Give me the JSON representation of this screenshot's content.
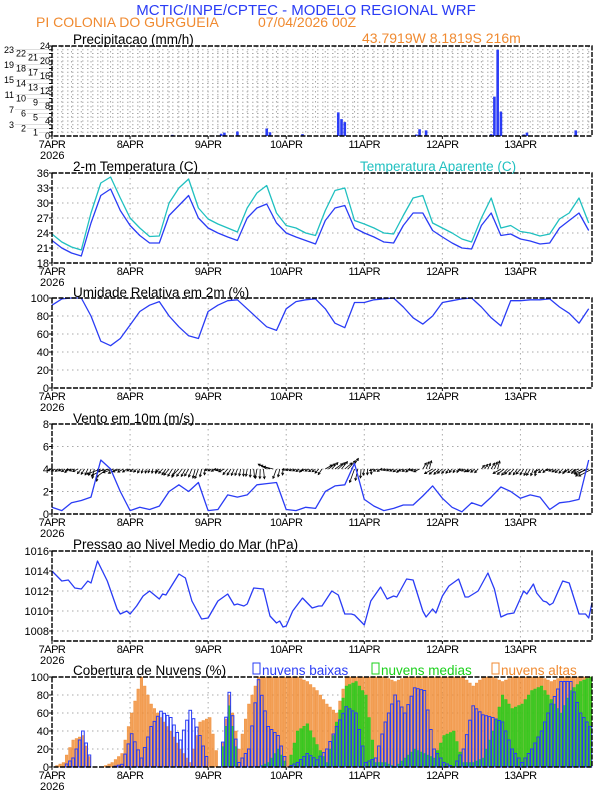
{
  "header": {
    "title": "MCTIC/INPE/CPTEC - MODELO REGIONAL WRF",
    "location": "PI COLONIA DO GURGUEIA",
    "run": "07/04/2026 00Z",
    "coords": "43.7919W 8.1819S 216m"
  },
  "colors": {
    "blue": "#2a3cf5",
    "cyan": "#20c0c0",
    "orange": "#f08a30",
    "green": "#18d018",
    "grid": "#aaaaaa"
  },
  "time_axis": {
    "labels": [
      "7APR",
      "8APR",
      "9APR",
      "10APR",
      "11APR",
      "12APR",
      "13APR"
    ],
    "year": "2026",
    "hours_total": 166,
    "step_hours": 3
  },
  "chart_data": [
    {
      "id": "precip",
      "type": "bar",
      "title": "Precipitacao (mm/h)",
      "ylim": [
        0,
        24
      ],
      "yticks_step": 1,
      "points_hour_value": [
        [
          37,
          0.3
        ],
        [
          52,
          0.6
        ],
        [
          53,
          0.9
        ],
        [
          57,
          1.2
        ],
        [
          66,
          2.0
        ],
        [
          67,
          1.0
        ],
        [
          77,
          0.5
        ],
        [
          88,
          6.3
        ],
        [
          89,
          4.5
        ],
        [
          90,
          3.7
        ],
        [
          112,
          0.4
        ],
        [
          113,
          1.8
        ],
        [
          115,
          1.5
        ],
        [
          135,
          0.5
        ],
        [
          136,
          10.5
        ],
        [
          137,
          23
        ],
        [
          138,
          6.5
        ],
        [
          145,
          0.4
        ],
        [
          146,
          0.9
        ],
        [
          161,
          1.5
        ]
      ]
    },
    {
      "id": "temp",
      "type": "line",
      "title": "2-m Temperatura (C)",
      "title2": "Temperatura Aparente (C)",
      "ylim": [
        18,
        36
      ],
      "yticks": [
        18,
        21,
        24,
        27,
        30,
        33,
        36
      ],
      "series": [
        {
          "name": "2-m Temperatura (C)",
          "color": "#2a3cf5",
          "values": [
            22.5,
            21.0,
            20.0,
            19.4,
            26.0,
            31.5,
            32.8,
            28.5,
            25.5,
            23.5,
            22.0,
            22.0,
            27.5,
            29.5,
            31.5,
            27.0,
            25.0,
            24.0,
            23.2,
            22.5,
            27.0,
            29.0,
            29.8,
            26.0,
            24.0,
            23.2,
            22.5,
            21.8,
            26.5,
            29.0,
            29.5,
            25.0,
            24.0,
            23.2,
            22.2,
            22.0,
            25.5,
            28.0,
            28.0,
            24.5,
            23.2,
            22.0,
            21.0,
            20.8,
            25.5,
            28.0,
            23.5,
            23.8,
            22.8,
            22.4,
            21.8,
            22.0,
            25.0,
            26.5,
            28.0,
            24.5
          ]
        },
        {
          "name": "Temperatura Aparente (C)",
          "color": "#20c0c0",
          "values": [
            23.8,
            22.2,
            21.2,
            20.6,
            28.0,
            34.0,
            35.2,
            31.0,
            27.0,
            25.0,
            23.3,
            23.4,
            30.0,
            33.0,
            34.8,
            29.0,
            26.8,
            25.8,
            25.0,
            24.2,
            29.0,
            32.0,
            33.5,
            28.0,
            25.5,
            25.0,
            24.0,
            23.5,
            28.5,
            32.5,
            33.0,
            26.5,
            25.8,
            25.0,
            24.0,
            23.8,
            27.5,
            31.0,
            31.5,
            26.0,
            25.0,
            24.0,
            22.8,
            22.2,
            27.0,
            31.0,
            25.0,
            25.5,
            24.3,
            24.0,
            23.4,
            23.8,
            26.8,
            28.0,
            31.0,
            26.0
          ]
        }
      ]
    },
    {
      "id": "rh",
      "type": "line",
      "title": "Umidade Relativa em 2m (%)",
      "ylim": [
        0,
        100
      ],
      "yticks": [
        0,
        20,
        40,
        60,
        80,
        100
      ],
      "series": [
        {
          "name": "Umidade Relativa",
          "color": "#2a3cf5",
          "values": [
            92,
            99,
            100,
            100,
            80,
            52,
            47,
            55,
            70,
            85,
            92,
            96,
            80,
            68,
            58,
            55,
            85,
            92,
            97,
            98,
            88,
            78,
            68,
            64,
            88,
            96,
            98,
            99,
            88,
            72,
            67,
            95,
            95,
            98,
            99,
            100,
            90,
            78,
            71,
            80,
            95,
            97,
            99,
            100,
            90,
            78,
            69,
            97,
            97,
            98,
            98,
            99,
            90,
            83,
            72,
            88
          ]
        }
      ]
    },
    {
      "id": "wind",
      "type": "line",
      "title": "Vento em 10m (m/s)",
      "ylim": [
        0,
        8
      ],
      "yticks": [
        0,
        2,
        4,
        6,
        8
      ],
      "series": [
        {
          "name": "Velocidade",
          "color": "#2a3cf5",
          "values": [
            0.6,
            0.3,
            1.0,
            1.2,
            1.5,
            4.8,
            4.0,
            2.0,
            0.3,
            0.6,
            0.4,
            0.7,
            2.0,
            2.6,
            2.0,
            2.8,
            0.3,
            0.4,
            1.7,
            1.5,
            1.7,
            2.6,
            2.7,
            2.8,
            0.4,
            0.3,
            0.6,
            0.5,
            2.0,
            2.5,
            2.6,
            4.5,
            1.3,
            0.7,
            0.3,
            0.5,
            0.8,
            0.8,
            1.6,
            2.5,
            1.4,
            0.6,
            0.2,
            1.0,
            0.7,
            1.5,
            2.4,
            2.0,
            1.4,
            1.7,
            1.5,
            0.4,
            1.0,
            1.1,
            1.3,
            4.8
          ]
        }
      ],
      "arrow_direction_deg": [
        200,
        210,
        190,
        230,
        250,
        200,
        190,
        200,
        210,
        240,
        250,
        220,
        230,
        225,
        240,
        250,
        200,
        190,
        230,
        250,
        260,
        260,
        150,
        250,
        190,
        210,
        200,
        220,
        30,
        35,
        40,
        250,
        260,
        200,
        190,
        210,
        200,
        190,
        60,
        210,
        220,
        230,
        200,
        210,
        50,
        60,
        210,
        220,
        230,
        240,
        210,
        200,
        220,
        210,
        200,
        200
      ]
    },
    {
      "id": "pressure",
      "type": "line",
      "title": "Pressao ao Nivel Medio do Mar (hPa)",
      "ylim": [
        1007,
        1016
      ],
      "yticks": [
        1008,
        1010,
        1012,
        1014,
        1016
      ],
      "series": [
        {
          "name": "Pressao",
          "color": "#2a3cf5",
          "points_hour_value": [
            [
              0,
              1014
            ],
            [
              3,
              1013
            ],
            [
              5,
              1013.1
            ],
            [
              7,
              1012.3
            ],
            [
              9,
              1012.2
            ],
            [
              11,
              1013
            ],
            [
              12,
              1012.8
            ],
            [
              14,
              1015
            ],
            [
              17,
              1013
            ],
            [
              20,
              1010.2
            ],
            [
              21,
              1009.7
            ],
            [
              23,
              1010
            ],
            [
              24,
              1009.7
            ],
            [
              26,
              1010.5
            ],
            [
              28,
              1011.5
            ],
            [
              30,
              1012
            ],
            [
              33,
              1011.2
            ],
            [
              34,
              1011.7
            ],
            [
              35,
              1011.6
            ],
            [
              39,
              1013.7
            ],
            [
              41,
              1013.3
            ],
            [
              43,
              1011
            ],
            [
              46,
              1009.2
            ],
            [
              48,
              1009.3
            ],
            [
              51,
              1011
            ],
            [
              54,
              1011.7
            ],
            [
              56,
              1010.6
            ],
            [
              57,
              1010.7
            ],
            [
              59,
              1010.5
            ],
            [
              60,
              1010.7
            ],
            [
              62,
              1012.3
            ],
            [
              65,
              1012.2
            ],
            [
              67,
              1009.5
            ],
            [
              69,
              1008.8
            ],
            [
              70,
              1009
            ],
            [
              71,
              1008.4
            ],
            [
              72,
              1008.5
            ],
            [
              74,
              1010
            ],
            [
              77,
              1011.3
            ],
            [
              80,
              1010.3
            ],
            [
              82,
              1010.5
            ],
            [
              83,
              1010.5
            ],
            [
              86,
              1012
            ],
            [
              88,
              1011.6
            ],
            [
              90,
              1009.7
            ],
            [
              92,
              1009.7
            ],
            [
              93,
              1009.6
            ],
            [
              96,
              1008.6
            ],
            [
              98,
              1011
            ],
            [
              101,
              1012.4
            ],
            [
              103,
              1011.2
            ],
            [
              105,
              1011.5
            ],
            [
              106,
              1011.4
            ],
            [
              109,
              1013.2
            ],
            [
              111,
              1013.1
            ],
            [
              114,
              1010
            ],
            [
              115,
              1009.4
            ],
            [
              117,
              1010.2
            ],
            [
              118,
              1009.8
            ],
            [
              120,
              1011.5
            ],
            [
              122,
              1012.5
            ],
            [
              125,
              1013.2
            ],
            [
              127,
              1011.4
            ],
            [
              128,
              1011.4
            ],
            [
              130,
              1011.8
            ],
            [
              131,
              1012
            ],
            [
              134,
              1013.8
            ],
            [
              136,
              1012.2
            ],
            [
              138,
              1009.4
            ],
            [
              140,
              1009.7
            ],
            [
              142,
              1009.8
            ],
            [
              145,
              1012
            ],
            [
              146,
              1011.7
            ],
            [
              148,
              1012.7
            ],
            [
              149,
              1011.8
            ],
            [
              151,
              1011
            ],
            [
              152,
              1010.9
            ],
            [
              153,
              1010.6
            ],
            [
              154,
              1010.8
            ],
            [
              157,
              1013
            ],
            [
              159,
              1012.8
            ],
            [
              162,
              1009.7
            ],
            [
              164,
              1009.7
            ],
            [
              165,
              1009.3
            ],
            [
              166,
              1010.8
            ]
          ]
        }
      ]
    },
    {
      "id": "clouds",
      "type": "bar",
      "title": "Cobertura de Nuvens (%)",
      "ylim": [
        0,
        100
      ],
      "yticks": [
        0,
        20,
        40,
        60,
        80,
        100
      ],
      "series": [
        {
          "name": "nuvens altas",
          "color": "#f08a30",
          "values": [
            0,
            5,
            30,
            35,
            0,
            0,
            5,
            15,
            60,
            100,
            70,
            55,
            40,
            20,
            5,
            50,
            55,
            0,
            80,
            20,
            70,
            100,
            100,
            100,
            100,
            100,
            95,
            85,
            70,
            60,
            100,
            100,
            100,
            100,
            100,
            95,
            100,
            100,
            100,
            100,
            100,
            100,
            100,
            90,
            100,
            100,
            95,
            100,
            100,
            100,
            100,
            95,
            100,
            100,
            100,
            100
          ]
        },
        {
          "name": "nuvens medias",
          "color": "#18d018",
          "values": [
            0,
            0,
            0,
            0,
            0,
            0,
            0,
            0,
            0,
            0,
            0,
            0,
            0,
            0,
            0,
            0,
            0,
            0,
            68,
            0,
            0,
            0,
            5,
            20,
            0,
            40,
            48,
            25,
            5,
            50,
            90,
            95,
            80,
            5,
            5,
            0,
            10,
            20,
            15,
            10,
            35,
            40,
            5,
            5,
            10,
            40,
            80,
            65,
            70,
            85,
            90,
            75,
            60,
            85,
            95,
            100
          ]
        },
        {
          "name": "nuvens baixas",
          "color": "#2a3cf5",
          "values": [
            0,
            0,
            10,
            40,
            0,
            0,
            0,
            3,
            37,
            10,
            45,
            62,
            55,
            30,
            63,
            35,
            0,
            0,
            83,
            5,
            20,
            97,
            45,
            35,
            0,
            5,
            15,
            8,
            20,
            45,
            67,
            60,
            5,
            10,
            50,
            80,
            60,
            88,
            85,
            20,
            5,
            0,
            20,
            68,
            58,
            55,
            50,
            20,
            5,
            20,
            40,
            70,
            95,
            95,
            60,
            45
          ]
        }
      ],
      "legend": [
        "nuvens baixas",
        "nuvens medias",
        "nuvens altas"
      ]
    }
  ]
}
